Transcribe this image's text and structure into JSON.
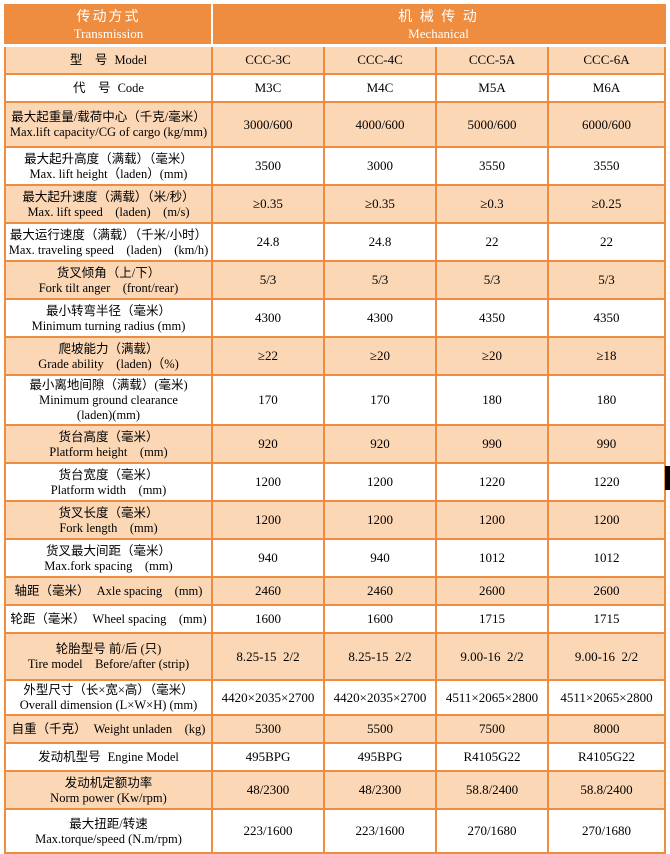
{
  "colors": {
    "orange": "#EE8C3F",
    "peach": "#FBD7B6",
    "header_text": "#FFFFFF",
    "body_text": "#000000",
    "scroll_thumb": "#000000"
  },
  "header": {
    "left": {
      "zh": "传动方式",
      "en": "Transmission"
    },
    "right": {
      "zh": "机 械 传 动",
      "en": "Mechanical"
    }
  },
  "rows": [
    {
      "zh": "型　号",
      "en": "Model",
      "inline": true,
      "values": [
        "CCC-3C",
        "CCC-4C",
        "CCC-5A",
        "CCC-6A"
      ]
    },
    {
      "zh": "代　号",
      "en": "Code",
      "inline": true,
      "values": [
        "M3C",
        "M4C",
        "M5A",
        "M6A"
      ]
    },
    {
      "zh": "最大起重量/载荷中心（千克/毫米）",
      "en": "Max.lift capacity/CG of cargo (kg/mm)",
      "values": [
        "3000/600",
        "4000/600",
        "5000/600",
        "6000/600"
      ]
    },
    {
      "zh": "最大起升高度（满载）（毫米）",
      "en": "Max. lift height（laden）(mm)",
      "values": [
        "3500",
        "3000",
        "3550",
        "3550"
      ]
    },
    {
      "zh": "最大起升速度（满载）（米/秒）",
      "en": "Max. lift speed　(laden)　(m/s)",
      "values": [
        "≥0.35",
        "≥0.35",
        "≥0.3",
        "≥0.25"
      ]
    },
    {
      "zh": "最大运行速度（满载）（千米/小时）",
      "en": "Max. traveling speed　(laden)　(km/h)",
      "values": [
        "24.8",
        "24.8",
        "22",
        "22"
      ]
    },
    {
      "zh": "货叉倾角（上/下）",
      "en": "Fork tilt anger　(front/rear)",
      "values": [
        "5/3",
        "5/3",
        "5/3",
        "5/3"
      ]
    },
    {
      "zh": "最小转弯半径（毫米）",
      "en": "Minimum turning radius (mm)",
      "values": [
        "4300",
        "4300",
        "4350",
        "4350"
      ]
    },
    {
      "zh": "爬坡能力（满载）",
      "en": "Grade ability　(laden)（%)",
      "values": [
        "≥22",
        "≥20",
        "≥20",
        "≥18"
      ]
    },
    {
      "zh": "最小离地间隙（满载）(毫米)",
      "en": "Minimum ground clearance",
      "extra": "(laden)(mm)",
      "values": [
        "170",
        "170",
        "180",
        "180"
      ]
    },
    {
      "zh": "货台高度（毫米）",
      "en": "Platform height　(mm)",
      "values": [
        "920",
        "920",
        "990",
        "990"
      ]
    },
    {
      "zh": "货台宽度（毫米）",
      "en": "Platform width　(mm)",
      "values": [
        "1200",
        "1200",
        "1220",
        "1220"
      ]
    },
    {
      "zh": "货叉长度（毫米）",
      "en": "Fork length　(mm)",
      "values": [
        "1200",
        "1200",
        "1200",
        "1200"
      ]
    },
    {
      "zh": "货叉最大间距（毫米）",
      "en": "Max.fork spacing　(mm)",
      "values": [
        "940",
        "940",
        "1012",
        "1012"
      ]
    },
    {
      "zh": "轴距（毫米）",
      "en": "Axle spacing　(mm)",
      "inline": true,
      "values": [
        "2460",
        "2460",
        "2600",
        "2600"
      ]
    },
    {
      "zh": "轮距（毫米）",
      "en": "Wheel spacing　(mm)",
      "inline": true,
      "values": [
        "1600",
        "1600",
        "1715",
        "1715"
      ]
    },
    {
      "zh": "轮胎型号 前/后 (只)",
      "en": "Tire model　Before/after (strip)",
      "values": [
        "8.25-15  2/2",
        "8.25-15  2/2",
        "9.00-16  2/2",
        "9.00-16  2/2"
      ]
    },
    {
      "zh": "外型尺寸（长×宽×高）（毫米）",
      "en": "Overall dimension (L×W×H) (mm)",
      "values": [
        "4420×2035×2700",
        "4420×2035×2700",
        "4511×2065×2800",
        "4511×2065×2800"
      ]
    },
    {
      "zh": "自重（千克）",
      "en": "Weight unladen　(kg)",
      "inline": true,
      "values": [
        "5300",
        "5500",
        "7500",
        "8000"
      ]
    },
    {
      "zh": "发动机型号",
      "en": "Engine Model",
      "inline": true,
      "values": [
        "495BPG",
        "495BPG",
        "R4105G22",
        "R4105G22"
      ]
    },
    {
      "zh": "发动机定额功率",
      "en": "Norm power (Kw/rpm)",
      "values": [
        "48/2300",
        "48/2300",
        "58.8/2400",
        "58.8/2400"
      ]
    },
    {
      "zh": "最大扭距/转速",
      "en": "Max.torque/speed (N.m/rpm)",
      "values": [
        "223/1600",
        "223/1600",
        "270/1680",
        "270/1680"
      ]
    }
  ]
}
